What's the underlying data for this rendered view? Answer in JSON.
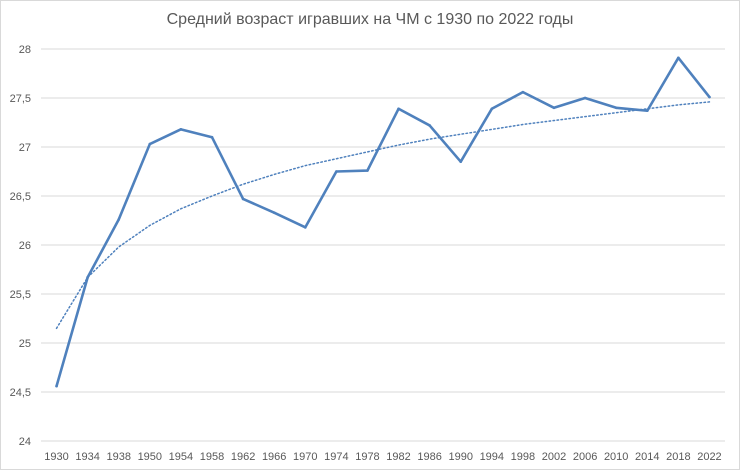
{
  "chart_data": {
    "type": "line",
    "title": "Средний возраст игравших на ЧМ с 1930 по 2022 годы",
    "xlabel": "",
    "ylabel": "",
    "categories": [
      "1930",
      "1934",
      "1938",
      "1950",
      "1954",
      "1958",
      "1962",
      "1966",
      "1970",
      "1974",
      "1978",
      "1982",
      "1986",
      "1990",
      "1994",
      "1998",
      "2002",
      "2006",
      "2010",
      "2014",
      "2018",
      "2022"
    ],
    "series": [
      {
        "values": [
          24.56,
          25.67,
          26.26,
          27.03,
          27.18,
          27.1,
          26.47,
          26.33,
          26.18,
          26.75,
          26.76,
          27.39,
          27.22,
          26.85,
          27.39,
          27.56,
          27.4,
          27.5,
          27.4,
          27.37,
          27.91,
          27.51
        ],
        "color": "#4f81bd"
      }
    ],
    "trendline": {
      "type": "logarithmic",
      "color": "#4f81bd",
      "style": "dotted",
      "values": [
        25.15,
        25.67,
        25.98,
        26.2,
        26.37,
        26.5,
        26.62,
        26.72,
        26.81,
        26.88,
        26.95,
        27.02,
        27.08,
        27.13,
        27.18,
        27.23,
        27.27,
        27.31,
        27.35,
        27.39,
        27.43,
        27.46
      ]
    },
    "ylim": [
      24,
      28
    ],
    "yticks": [
      "24",
      "24,5",
      "25",
      "25,5",
      "26",
      "26,5",
      "27",
      "27,5",
      "28"
    ],
    "grid": true,
    "legend": "none"
  }
}
